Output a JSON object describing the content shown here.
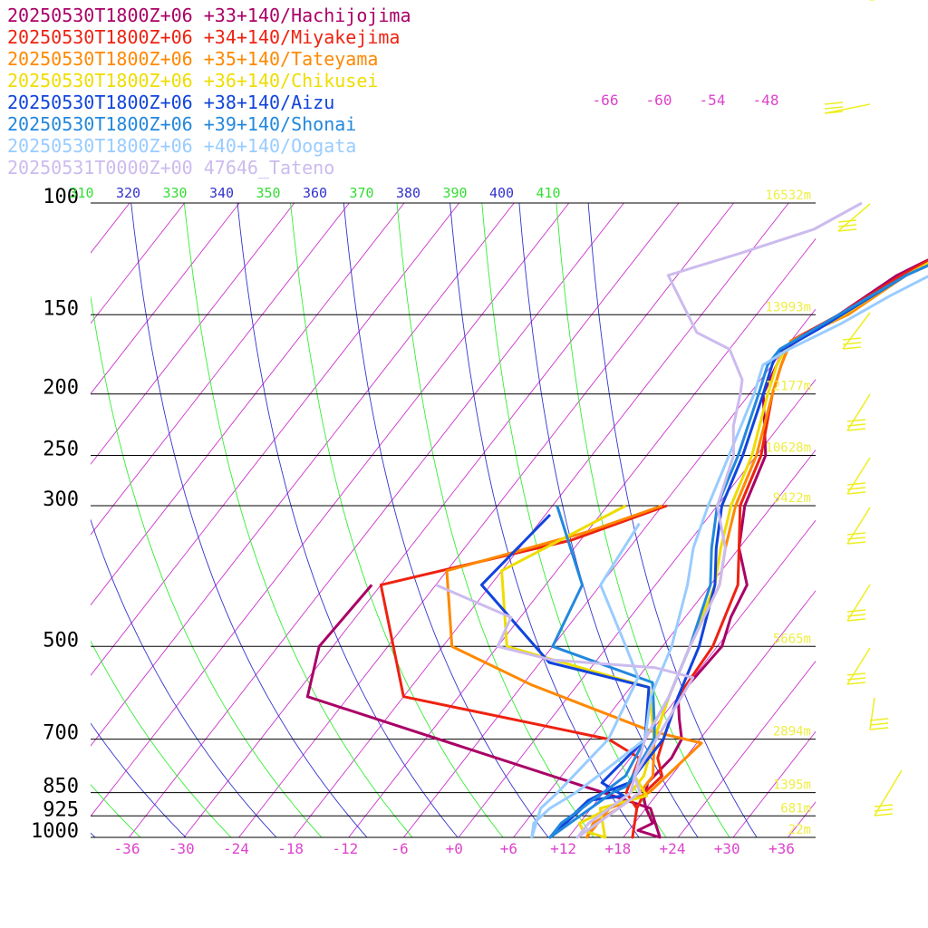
{
  "chart_data": {
    "type": "line",
    "title": "",
    "xlabel": "",
    "ylabel": "",
    "x_ticks": [
      "-36",
      "-30",
      "-24",
      "-18",
      "-12",
      "-6",
      "+0",
      "+6",
      "+12",
      "+18",
      "+24",
      "+30",
      "+36"
    ],
    "pressure_levels": [
      {
        "label": "100",
        "p": 100,
        "height": "16532m"
      },
      {
        "label": "150",
        "p": 150,
        "height": "13993m"
      },
      {
        "label": "200",
        "p": 200,
        "height": "12177m"
      },
      {
        "label": "250",
        "p": 250,
        "height": "10628m"
      },
      {
        "label": "300",
        "p": 300,
        "height": "9422m"
      },
      {
        "label": "500",
        "p": 500,
        "height": "5665m"
      },
      {
        "label": "700",
        "p": 700,
        "height": "2894m"
      },
      {
        "label": "850",
        "p": 850,
        "height": "1395m"
      },
      {
        "label": "925",
        "p": 925,
        "height": "681m"
      },
      {
        "label": "1000",
        "p": 1000,
        "height": "22m"
      }
    ],
    "theta_e_labels": [
      {
        "text": "310",
        "color": "#33dd33"
      },
      {
        "text": "320",
        "color": "#3333cc"
      },
      {
        "text": "330",
        "color": "#33dd33"
      },
      {
        "text": "340",
        "color": "#3333cc"
      },
      {
        "text": "350",
        "color": "#33dd33"
      },
      {
        "text": "360",
        "color": "#3333cc"
      },
      {
        "text": "370",
        "color": "#33dd33"
      },
      {
        "text": "380",
        "color": "#3333cc"
      },
      {
        "text": "390",
        "color": "#33dd33"
      },
      {
        "text": "400",
        "color": "#3333cc"
      },
      {
        "text": "410",
        "color": "#33dd33"
      }
    ],
    "isotherm_labels": [
      "-66",
      "-60",
      "-54",
      "-48"
    ],
    "grid": true,
    "legend_position": "top-left",
    "series": [
      {
        "name": "20250530T1800Z+06 +33+140/Hachijojima",
        "color": "#aa0066",
        "points": [
          [
            -31,
            400
          ],
          [
            -31.5,
            500
          ],
          [
            -28.5,
            600
          ],
          [
            12,
            850
          ],
          [
            18.5,
            900
          ],
          [
            22,
            1000
          ],
          [
            19,
            975
          ],
          [
            20,
            950
          ],
          [
            18,
            900
          ],
          [
            17,
            870
          ],
          [
            16,
            820
          ],
          [
            16.5,
            750
          ],
          [
            16,
            700
          ],
          [
            14,
            650
          ],
          [
            12,
            600
          ],
          [
            12.5,
            500
          ],
          [
            11,
            450
          ],
          [
            10,
            400
          ],
          [
            6,
            350
          ],
          [
            3,
            300
          ],
          [
            1,
            250
          ],
          [
            -4.5,
            200
          ],
          [
            -5.5,
            180
          ],
          [
            -6,
            170
          ],
          [
            -3,
            150
          ],
          [
            0,
            130
          ],
          [
            3,
            120
          ],
          [
            5,
            112
          ],
          [
            5,
            100
          ],
          [
            6.5,
            85
          ],
          [
            11,
            70
          ],
          [
            25,
            50
          ]
        ]
      },
      {
        "name": "20250530T1800Z+06 +34+140/Miyakejima",
        "color": "#ee2211",
        "points": [
          [
            -5.5,
            300
          ],
          [
            -13,
            340
          ],
          [
            -30,
            400
          ],
          [
            -18,
            600
          ],
          [
            8,
            700
          ],
          [
            13,
            750
          ],
          [
            14.5,
            850
          ],
          [
            17,
            900
          ],
          [
            19,
            1000
          ],
          [
            17,
            900
          ],
          [
            16.5,
            850
          ],
          [
            17,
            800
          ],
          [
            15,
            750
          ],
          [
            14,
            700
          ],
          [
            12,
            600
          ],
          [
            11.5,
            500
          ],
          [
            9,
            400
          ],
          [
            6,
            350
          ],
          [
            2.5,
            300
          ],
          [
            0.5,
            250
          ],
          [
            -3.5,
            200
          ],
          [
            -5,
            180
          ],
          [
            -6,
            165
          ],
          [
            -3,
            150
          ],
          [
            0.5,
            130
          ],
          [
            3,
            120
          ],
          [
            5,
            112
          ],
          [
            6,
            100
          ],
          [
            8,
            85
          ],
          [
            12,
            70
          ],
          [
            26,
            50
          ]
        ]
      },
      {
        "name": "20250530T1800Z+06 +35+140/Tateyama",
        "color": "#ff8800",
        "points": [
          [
            -6,
            300
          ],
          [
            -12,
            330
          ],
          [
            -24,
            380
          ],
          [
            -17,
            500
          ],
          [
            -5,
            575
          ],
          [
            12,
            680
          ],
          [
            18.5,
            710
          ],
          [
            17,
            850
          ],
          [
            14,
            900
          ],
          [
            14,
            1000
          ],
          [
            13.5,
            950
          ],
          [
            15,
            900
          ],
          [
            16,
            850
          ],
          [
            16,
            800
          ],
          [
            13,
            700
          ],
          [
            11,
            600
          ],
          [
            9,
            500
          ],
          [
            7,
            400
          ],
          [
            4.5,
            350
          ],
          [
            2,
            300
          ],
          [
            0,
            250
          ],
          [
            -3.5,
            200
          ],
          [
            -5,
            180
          ],
          [
            -6,
            165
          ],
          [
            -2,
            150
          ],
          [
            1,
            130
          ],
          [
            3.5,
            120
          ],
          [
            5.5,
            112
          ],
          [
            6.5,
            100
          ],
          [
            8,
            85
          ],
          [
            12,
            70
          ],
          [
            26,
            50
          ]
        ]
      },
      {
        "name": "20250530T1800Z+06 +36+140/Chikusei",
        "color": "#eedd00",
        "points": [
          [
            -10,
            300
          ],
          [
            -18,
            380
          ],
          [
            -11,
            500
          ],
          [
            8,
            580
          ],
          [
            13,
            700
          ],
          [
            14,
            800
          ],
          [
            17,
            860
          ],
          [
            13,
            900
          ],
          [
            16,
            1000
          ],
          [
            13,
            975
          ],
          [
            12,
            950
          ],
          [
            14,
            900
          ],
          [
            15,
            850
          ],
          [
            15,
            800
          ],
          [
            13,
            700
          ],
          [
            11,
            600
          ],
          [
            9,
            500
          ],
          [
            6.5,
            400
          ],
          [
            4,
            350
          ],
          [
            1.5,
            300
          ],
          [
            -0.5,
            250
          ],
          [
            -4,
            200
          ],
          [
            -5.5,
            180
          ],
          [
            -6,
            168
          ],
          [
            -2.5,
            150
          ],
          [
            1,
            130
          ],
          [
            3.5,
            120
          ],
          [
            5.5,
            112
          ],
          [
            7.5,
            100
          ],
          [
            9,
            85
          ],
          [
            12.5,
            70
          ],
          [
            26,
            50
          ]
        ]
      },
      {
        "name": "20250530T1800Z+06 +38+140/Aizu",
        "color": "#1144dd",
        "points": [
          [
            -17.5,
            310
          ],
          [
            -19,
            400
          ],
          [
            -5,
            530
          ],
          [
            8,
            580
          ],
          [
            12,
            700
          ],
          [
            11,
            820
          ],
          [
            14.5,
            860
          ],
          [
            11,
            875
          ],
          [
            10,
            1000
          ],
          [
            10.5,
            950
          ],
          [
            11,
            900
          ],
          [
            11,
            875
          ],
          [
            12,
            850
          ],
          [
            14,
            820
          ],
          [
            14,
            700
          ],
          [
            12,
            600
          ],
          [
            10,
            500
          ],
          [
            6.5,
            400
          ],
          [
            3.5,
            350
          ],
          [
            0.5,
            300
          ],
          [
            -1.5,
            250
          ],
          [
            -4.5,
            200
          ],
          [
            -6,
            180
          ],
          [
            -6.5,
            172
          ],
          [
            -4,
            158
          ],
          [
            1,
            130
          ],
          [
            4.5,
            120
          ],
          [
            6,
            112
          ],
          [
            7,
            100
          ],
          [
            9,
            85
          ],
          [
            12,
            70
          ],
          [
            27,
            50
          ]
        ]
      },
      {
        "name": "20250530T1800Z+06 +39+140/Shonai",
        "color": "#2288dd",
        "points": [
          [
            -17.5,
            300
          ],
          [
            -8,
            400
          ],
          [
            -6,
            500
          ],
          [
            8,
            570
          ],
          [
            12,
            670
          ],
          [
            13,
            700
          ],
          [
            14,
            830
          ],
          [
            13,
            850
          ],
          [
            10,
            1000
          ],
          [
            10,
            950
          ],
          [
            11,
            900
          ],
          [
            11.5,
            870
          ],
          [
            12,
            850
          ],
          [
            13,
            800
          ],
          [
            12,
            700
          ],
          [
            11,
            600
          ],
          [
            9,
            500
          ],
          [
            6,
            400
          ],
          [
            3,
            350
          ],
          [
            0,
            300
          ],
          [
            -2,
            250
          ],
          [
            -5,
            200
          ],
          [
            -6.5,
            180
          ],
          [
            -6.5,
            170
          ],
          [
            -3,
            150
          ],
          [
            1,
            130
          ],
          [
            4.5,
            120
          ],
          [
            7,
            112
          ],
          [
            8,
            100
          ],
          [
            10,
            85
          ],
          [
            13,
            70
          ],
          [
            27,
            50
          ]
        ]
      },
      {
        "name": "20250530T1800Z+06 +40+140/Oogata",
        "color": "#99ccff",
        "points": [
          [
            -7,
            320
          ],
          [
            -6,
            400
          ],
          [
            2,
            500
          ],
          [
            6,
            560
          ],
          [
            8,
            700
          ],
          [
            7,
            850
          ],
          [
            6.5,
            900
          ],
          [
            8,
            1000
          ],
          [
            7,
            950
          ],
          [
            7.5,
            900
          ],
          [
            9,
            850
          ],
          [
            10,
            800
          ],
          [
            12,
            700
          ],
          [
            9,
            600
          ],
          [
            7,
            500
          ],
          [
            3.5,
            400
          ],
          [
            1,
            350
          ],
          [
            -1,
            300
          ],
          [
            -3,
            250
          ],
          [
            -5.5,
            200
          ],
          [
            -7,
            180
          ],
          [
            -5.5,
            170
          ],
          [
            -2,
            155
          ],
          [
            1,
            140
          ],
          [
            5,
            125
          ],
          [
            8,
            112
          ],
          [
            8.5,
            105
          ],
          [
            9,
            85
          ],
          [
            14,
            70
          ],
          [
            28,
            50
          ]
        ]
      },
      {
        "name": "20250531T0000Z+00 47646_Tateno",
        "color": "#ccbbee",
        "points": [
          [
            -24,
            400
          ],
          [
            -13,
            450
          ],
          [
            -12,
            500
          ],
          [
            -5,
            525
          ],
          [
            7,
            540
          ],
          [
            12,
            560
          ],
          [
            14,
            800
          ],
          [
            16,
            850
          ],
          [
            15,
            900
          ],
          [
            13,
            1000
          ],
          [
            13,
            950
          ],
          [
            14,
            900
          ],
          [
            15,
            850
          ],
          [
            14,
            800
          ],
          [
            12,
            700
          ],
          [
            11,
            600
          ],
          [
            9,
            500
          ],
          [
            7,
            400
          ],
          [
            4.5,
            350
          ],
          [
            0,
            300
          ],
          [
            -2.5,
            250
          ],
          [
            -5,
            225
          ],
          [
            -7,
            200
          ],
          [
            -8,
            190
          ],
          [
            -12,
            170
          ],
          [
            -17,
            160
          ],
          [
            -25,
            130
          ],
          [
            -19,
            120
          ],
          [
            -13,
            110
          ],
          [
            -10,
            100
          ]
        ]
      }
    ]
  }
}
